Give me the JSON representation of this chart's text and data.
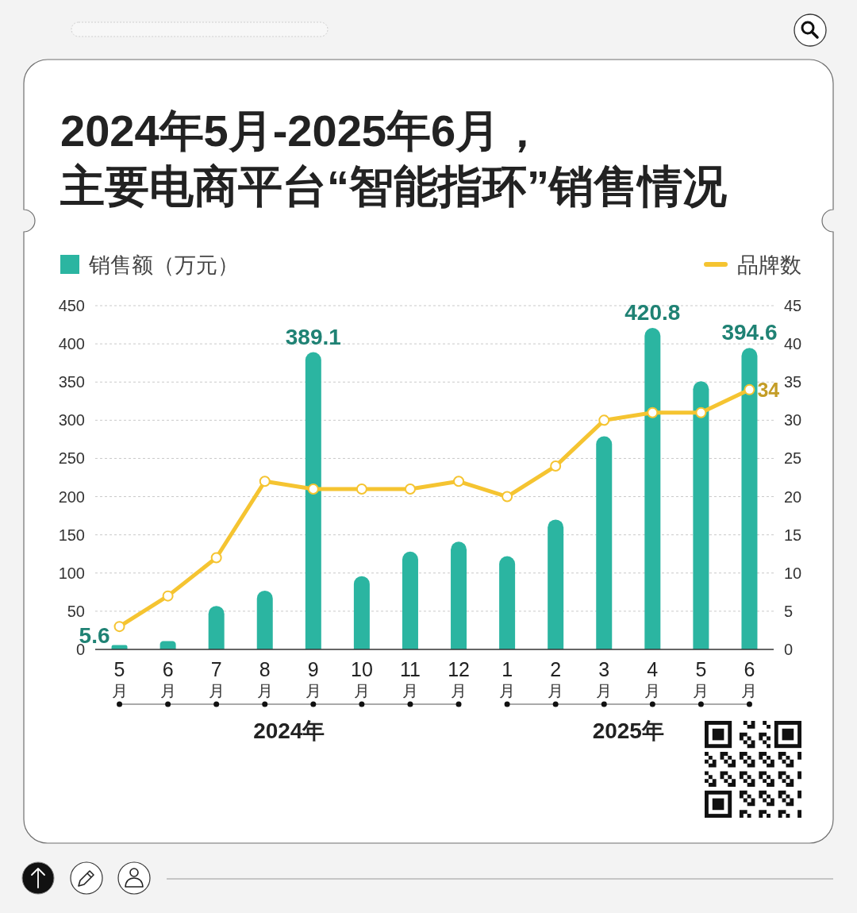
{
  "chart_data": {
    "type": "bar",
    "title": "2024年5月-2025年6月，主要电商平台“智能指环”销售情况",
    "categories": [
      "5月",
      "6月",
      "7月",
      "8月",
      "9月",
      "10月",
      "11月",
      "12月",
      "1月",
      "2月",
      "3月",
      "4月",
      "5月",
      "6月"
    ],
    "series": [
      {
        "name": "销售额（万元）",
        "color": "#2bb5a1",
        "values": [
          5.6,
          11,
          57,
          77,
          389.1,
          96,
          128,
          141,
          122,
          170,
          279,
          420.8,
          351,
          394.6
        ],
        "value_labels": [
          "5.6",
          null,
          null,
          null,
          "389.1",
          null,
          null,
          null,
          null,
          null,
          null,
          "420.8",
          null,
          "394.6"
        ]
      },
      {
        "name": "品牌数",
        "type": "line",
        "axis": "y2",
        "color": "#f5c431",
        "values": [
          3,
          7,
          12,
          22,
          21,
          21,
          21,
          22,
          20,
          24,
          30,
          31,
          31,
          34
        ],
        "value_labels": [
          null,
          null,
          null,
          null,
          null,
          null,
          null,
          null,
          null,
          null,
          null,
          null,
          null,
          "34"
        ]
      }
    ],
    "ylim": [
      0,
      450
    ],
    "yticks": [
      0,
      50,
      100,
      150,
      200,
      250,
      300,
      350,
      400,
      450
    ],
    "y2lim": [
      0,
      45
    ],
    "y2ticks": [
      0,
      5,
      10,
      15,
      20,
      25,
      30,
      35,
      40,
      45
    ],
    "grid": "y",
    "legend": "top",
    "marker": "circle",
    "annotations": [
      "2024年",
      "2025年"
    ]
  }
}
